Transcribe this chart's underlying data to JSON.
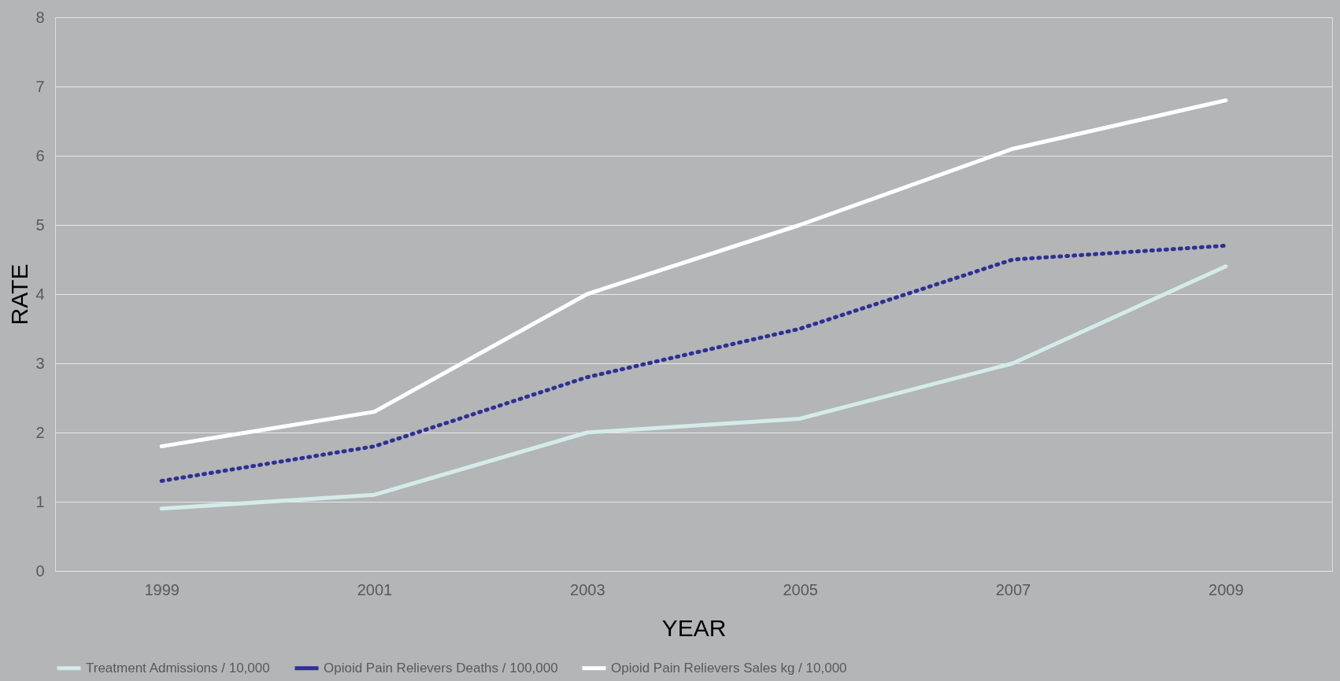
{
  "chart_data": {
    "type": "line",
    "xlabel": "YEAR",
    "ylabel": "RATE",
    "categories": [
      "1999",
      "2001",
      "2003",
      "2005",
      "2007",
      "2009"
    ],
    "series": [
      {
        "name": "Treatment Admissions / 10,000",
        "color": "#d5ebea",
        "line_style": "solid",
        "values": [
          0.9,
          1.1,
          2.0,
          2.2,
          3.0,
          4.4
        ]
      },
      {
        "name": "Opioid Pain Relievers Deaths / 100,000",
        "color": "#2e3192",
        "line_style": "dotted",
        "values": [
          1.3,
          1.8,
          2.8,
          3.5,
          4.5,
          4.7
        ]
      },
      {
        "name": "Opioid Pain Relievers Sales kg / 10,000",
        "color": "#ffffff",
        "line_style": "solid",
        "values": [
          1.8,
          2.3,
          4.0,
          5.0,
          6.1,
          6.8
        ]
      }
    ],
    "ylim": [
      0,
      8
    ],
    "yticks": [
      0,
      1,
      2,
      3,
      4,
      5,
      6,
      7,
      8
    ],
    "grid": "y",
    "legend": "bottom",
    "marker": "none"
  }
}
